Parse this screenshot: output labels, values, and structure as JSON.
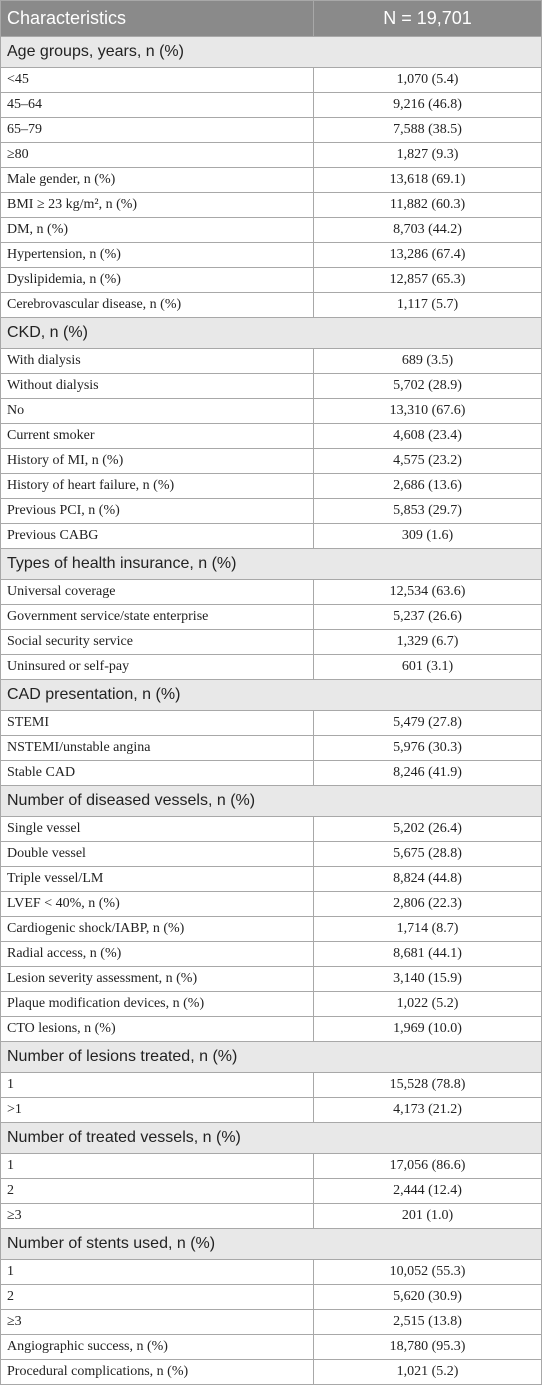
{
  "table": {
    "header": [
      "Characteristics",
      "N = 19,701"
    ],
    "sections": [
      {
        "title": "Age groups, years, n (%)",
        "rows": [
          [
            "<45",
            "1,070 (5.4)"
          ],
          [
            "45–64",
            "9,216 (46.8)"
          ],
          [
            "65–79",
            "7,588 (38.5)"
          ],
          [
            "≥80",
            "1,827 (9.3)"
          ],
          [
            "Male gender, n (%)",
            "13,618 (69.1)"
          ],
          [
            "BMI ≥ 23 kg/m², n (%)",
            "11,882 (60.3)"
          ],
          [
            "DM, n (%)",
            "8,703 (44.2)"
          ],
          [
            "Hypertension, n (%)",
            "13,286 (67.4)"
          ],
          [
            "Dyslipidemia, n (%)",
            "12,857 (65.3)"
          ],
          [
            "Cerebrovascular disease, n (%)",
            "1,117 (5.7)"
          ]
        ]
      },
      {
        "title": "CKD, n (%)",
        "rows": [
          [
            "With dialysis",
            "689 (3.5)"
          ],
          [
            "Without dialysis",
            "5,702 (28.9)"
          ],
          [
            "No",
            "13,310 (67.6)"
          ],
          [
            "Current smoker",
            "4,608 (23.4)"
          ],
          [
            "History of MI, n (%)",
            "4,575 (23.2)"
          ],
          [
            "History of heart failure, n (%)",
            "2,686 (13.6)"
          ],
          [
            "Previous PCI, n (%)",
            "5,853 (29.7)"
          ],
          [
            "Previous CABG",
            "309 (1.6)"
          ]
        ]
      },
      {
        "title": "Types of health insurance, n (%)",
        "rows": [
          [
            "Universal coverage",
            "12,534 (63.6)"
          ],
          [
            "Government service/state enterprise",
            "5,237 (26.6)"
          ],
          [
            "Social security service",
            "1,329 (6.7)"
          ],
          [
            "Uninsured or self-pay",
            "601 (3.1)"
          ]
        ]
      },
      {
        "title": "CAD presentation, n (%)",
        "rows": [
          [
            "STEMI",
            "5,479 (27.8)"
          ],
          [
            "NSTEMI/unstable angina",
            "5,976 (30.3)"
          ],
          [
            "Stable CAD",
            "8,246 (41.9)"
          ]
        ]
      },
      {
        "title": "Number of diseased vessels, n (%)",
        "rows": [
          [
            "Single vessel",
            "5,202 (26.4)"
          ],
          [
            "Double vessel",
            "5,675 (28.8)"
          ],
          [
            "Triple vessel/LM",
            "8,824 (44.8)"
          ],
          [
            "LVEF < 40%, n (%)",
            "2,806 (22.3)"
          ],
          [
            "Cardiogenic shock/IABP, n (%)",
            "1,714 (8.7)"
          ],
          [
            "Radial access, n (%)",
            "8,681 (44.1)"
          ],
          [
            "Lesion severity assessment, n (%)",
            "3,140 (15.9)"
          ],
          [
            "Plaque modification devices, n (%)",
            "1,022 (5.2)"
          ],
          [
            "CTO lesions, n (%)",
            "1,969 (10.0)"
          ]
        ]
      },
      {
        "title": "Number of lesions treated, n (%)",
        "rows": [
          [
            "1",
            "15,528 (78.8)"
          ],
          [
            ">1",
            "4,173 (21.2)"
          ]
        ]
      },
      {
        "title": "Number of treated vessels, n (%)",
        "rows": [
          [
            "1",
            "17,056 (86.6)"
          ],
          [
            "2",
            "2,444 (12.4)"
          ],
          [
            "≥3",
            "201 (1.0)"
          ]
        ]
      },
      {
        "title": "Number of stents used, n (%)",
        "rows": [
          [
            "1",
            "10,052 (55.3)"
          ],
          [
            "2",
            "5,620 (30.9)"
          ],
          [
            "≥3",
            "2,515 (13.8)"
          ],
          [
            "Angiographic success, n (%)",
            "18,780 (95.3)"
          ],
          [
            "Procedural complications, n (%)",
            "1,021 (5.2)"
          ]
        ]
      }
    ]
  }
}
